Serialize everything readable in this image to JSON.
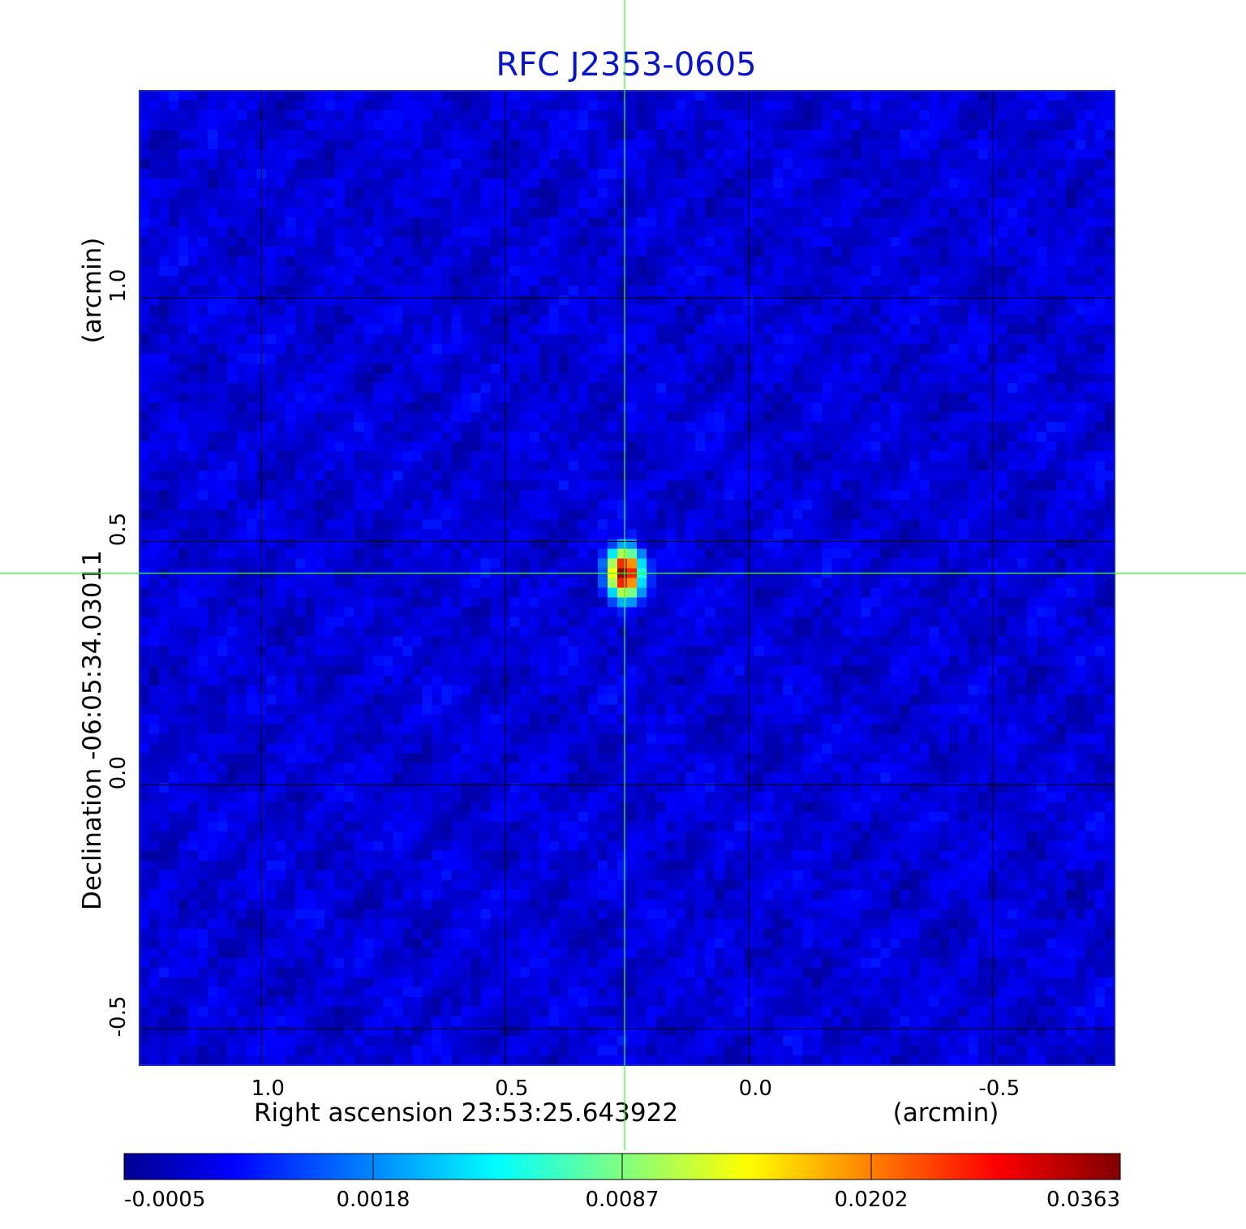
{
  "chart_data": {
    "type": "heatmap",
    "title": "RFC J2353-0605",
    "xlabel": "Right ascension  23:53:25.643922",
    "xunit": "(arcmin)",
    "ylabel": "Declination  -06:05:34.03011",
    "yunit": "(arcmin)",
    "xlim": [
      1.25,
      -0.75
    ],
    "ylim": [
      -0.575,
      1.425
    ],
    "x_ticks": [
      1.0,
      0.5,
      0.0,
      -0.5
    ],
    "y_ticks": [
      -0.5,
      0.0,
      0.5,
      1.0
    ],
    "x_tick_labels": [
      "1.0",
      "0.5",
      "0.0",
      "-0.5"
    ],
    "y_tick_labels": [
      "-0.5",
      "0.0",
      "0.5",
      "1.0"
    ],
    "grid": true,
    "crosshair": {
      "x": 0.255,
      "y": 0.435,
      "color": "#33ff33"
    },
    "source": {
      "x": 0.255,
      "y": 0.435,
      "peak": 0.0363,
      "sigma_x": 0.018,
      "sigma_y": 0.026
    },
    "noise": {
      "base": 0.0003,
      "amplitude": 0.0006
    },
    "colorbar": {
      "colormap": "jet",
      "ticks": [
        -0.0005,
        0.0018,
        0.0087,
        0.0202,
        0.0363
      ],
      "tick_labels": [
        "-0.0005",
        "0.0018",
        "0.0087",
        "0.0202",
        "0.0363"
      ]
    },
    "colors": {
      "title": "#0a14c8",
      "axis_frame": "#1428c8",
      "grid": "#000000",
      "crosshair": "#33ff33"
    }
  }
}
